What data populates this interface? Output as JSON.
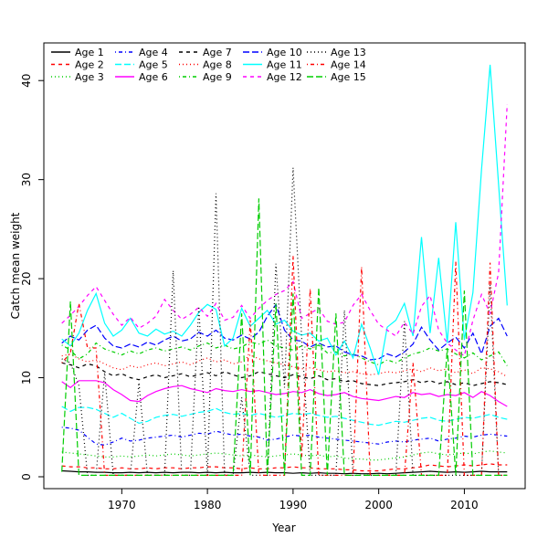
{
  "chart_data": {
    "type": "line",
    "title": "",
    "xlabel": "Year",
    "ylabel": "Catch mean weight",
    "x": [
      1963,
      1964,
      1965,
      1966,
      1967,
      1968,
      1969,
      1970,
      1971,
      1972,
      1973,
      1974,
      1975,
      1976,
      1977,
      1978,
      1979,
      1980,
      1981,
      1982,
      1983,
      1984,
      1985,
      1986,
      1987,
      1988,
      1989,
      1990,
      1991,
      1992,
      1993,
      1994,
      1995,
      1996,
      1997,
      1998,
      1999,
      2000,
      2001,
      2002,
      2003,
      2004,
      2005,
      2006,
      2007,
      2008,
      2009,
      2010,
      2011,
      2012,
      2013,
      2014,
      2015
    ],
    "xlim": [
      1960.9,
      2017.1
    ],
    "ylim": [
      -1.2,
      43.8
    ],
    "xticks": [
      1970,
      1980,
      1990,
      2000,
      2010
    ],
    "yticks": [
      0,
      10,
      20,
      30,
      40
    ],
    "grid": false,
    "legend_position": "top-left-inside",
    "legend_columns": 5,
    "series": [
      {
        "name": "Age 1",
        "color": "#000000",
        "linestyle": "solid",
        "values": [
          0.6,
          0.55,
          0.5,
          0.5,
          0.45,
          0.45,
          0.4,
          0.4,
          0.45,
          0.4,
          0.45,
          0.4,
          0.45,
          0.4,
          0.45,
          0.45,
          0.4,
          0.45,
          0.4,
          0.45,
          0.4,
          0.4,
          0.45,
          0.4,
          0.45,
          0.4,
          0.4,
          0.35,
          0.4,
          0.35,
          0.4,
          0.35,
          0.35,
          0.3,
          0.35,
          0.3,
          0.3,
          0.35,
          0.3,
          0.35,
          0.4,
          0.45,
          0.5,
          0.55,
          0.5,
          0.45,
          0.5,
          0.45,
          0.5,
          0.55,
          0.5,
          0.5,
          0.5
        ]
      },
      {
        "name": "Age 2",
        "color": "#FF0000",
        "linestyle": "dashed",
        "values": [
          1.1,
          1.0,
          1.0,
          0.9,
          0.9,
          0.8,
          0.8,
          0.9,
          0.8,
          0.8,
          0.9,
          0.8,
          0.9,
          0.9,
          0.8,
          0.9,
          0.9,
          1.0,
          1.0,
          0.9,
          0.9,
          0.8,
          0.9,
          0.8,
          0.8,
          0.9,
          0.9,
          1.0,
          0.9,
          0.9,
          0.8,
          0.8,
          0.8,
          0.7,
          0.7,
          0.6,
          0.6,
          0.6,
          0.7,
          0.8,
          0.8,
          0.9,
          1.0,
          1.2,
          1.1,
          1.0,
          1.1,
          1.2,
          1.1,
          1.2,
          1.3,
          1.2,
          1.2
        ]
      },
      {
        "name": "Age 3",
        "color": "#00CD00",
        "linestyle": "dotted",
        "values": [
          2.5,
          2.4,
          2.3,
          2.2,
          2.1,
          2.0,
          2.0,
          2.1,
          2.0,
          2.1,
          2.2,
          2.1,
          2.2,
          2.3,
          2.2,
          2.1,
          2.2,
          2.3,
          2.4,
          2.3,
          2.2,
          2.1,
          2.2,
          2.1,
          2.0,
          2.1,
          2.2,
          2.3,
          2.2,
          2.1,
          2.2,
          2.0,
          2.1,
          1.9,
          1.8,
          1.8,
          1.7,
          1.7,
          1.8,
          1.9,
          2.0,
          2.2,
          2.4,
          2.5,
          2.3,
          2.2,
          2.3,
          2.4,
          2.3,
          2.5,
          2.6,
          2.5,
          2.4
        ]
      },
      {
        "name": "Age 4",
        "color": "#0000FF",
        "linestyle": "dotdash",
        "values": [
          5.0,
          4.9,
          4.7,
          4.0,
          3.3,
          3.2,
          3.5,
          3.9,
          3.6,
          3.7,
          3.9,
          4.0,
          4.1,
          4.2,
          4.0,
          4.2,
          4.4,
          4.3,
          4.6,
          4.4,
          4.2,
          4.3,
          4.1,
          4.0,
          3.7,
          3.8,
          4.0,
          4.2,
          4.1,
          4.2,
          4.0,
          3.9,
          3.8,
          3.7,
          3.6,
          3.5,
          3.4,
          3.3,
          3.5,
          3.6,
          3.5,
          3.7,
          3.8,
          3.9,
          3.6,
          3.8,
          3.9,
          4.1,
          4.0,
          4.2,
          4.3,
          4.2,
          4.1
        ]
      },
      {
        "name": "Age 5",
        "color": "#00FFFF",
        "linestyle": "longdash",
        "values": [
          7.1,
          6.6,
          7.0,
          7.0,
          6.8,
          6.4,
          6.0,
          6.4,
          5.9,
          5.4,
          5.6,
          6.0,
          6.2,
          6.3,
          6.1,
          6.3,
          6.5,
          6.6,
          6.9,
          6.5,
          6.3,
          6.4,
          6.2,
          6.4,
          6.2,
          6.0,
          6.2,
          6.4,
          6.3,
          6.4,
          6.2,
          6.0,
          6.1,
          5.9,
          5.7,
          5.5,
          5.3,
          5.2,
          5.4,
          5.6,
          5.5,
          5.7,
          5.9,
          6.0,
          5.7,
          5.6,
          5.8,
          6.0,
          5.9,
          6.1,
          6.3,
          6.0,
          5.8
        ]
      },
      {
        "name": "Age 6",
        "color": "#FF00FF",
        "linestyle": "solid",
        "values": [
          9.6,
          9.0,
          9.7,
          9.7,
          9.7,
          9.5,
          8.8,
          8.3,
          7.7,
          7.6,
          8.2,
          8.6,
          8.9,
          9.1,
          9.2,
          8.9,
          8.7,
          8.5,
          8.9,
          8.7,
          8.6,
          8.8,
          8.6,
          8.7,
          8.5,
          8.3,
          8.4,
          8.6,
          8.5,
          8.8,
          8.4,
          8.2,
          8.3,
          8.5,
          8.1,
          7.9,
          7.8,
          7.7,
          7.9,
          8.1,
          8.0,
          8.5,
          8.3,
          8.4,
          8.1,
          8.3,
          8.2,
          8.5,
          8.0,
          8.6,
          8.2,
          7.6,
          7.1
        ]
      },
      {
        "name": "Age 7",
        "color": "#000000",
        "linestyle": "dashed",
        "values": [
          11.5,
          11.3,
          11.0,
          11.4,
          11.2,
          10.6,
          10.2,
          10.4,
          10.0,
          9.8,
          10.1,
          10.3,
          10.0,
          10.2,
          10.4,
          10.1,
          10.3,
          10.5,
          10.2,
          10.6,
          10.3,
          10.0,
          10.2,
          10.6,
          10.4,
          10.2,
          10.0,
          10.3,
          10.1,
          9.9,
          10.2,
          9.8,
          9.9,
          9.6,
          9.7,
          9.4,
          9.3,
          9.2,
          9.4,
          9.5,
          9.6,
          9.8,
          9.5,
          9.7,
          9.4,
          9.6,
          9.3,
          9.5,
          9.2,
          9.4,
          9.6,
          9.5,
          9.3
        ]
      },
      {
        "name": "Age 8",
        "color": "#FF0000",
        "linestyle": "dotted",
        "values": [
          12.2,
          12.4,
          11.9,
          11.6,
          11.8,
          11.4,
          11.0,
          10.8,
          11.2,
          11.0,
          11.3,
          11.5,
          11.2,
          11.4,
          11.6,
          11.3,
          11.7,
          12.0,
          11.6,
          11.8,
          11.4,
          11.6,
          12.3,
          11.9,
          11.7,
          11.5,
          11.3,
          11.1,
          10.9,
          11.0,
          10.8,
          10.6,
          10.7,
          10.5,
          10.6,
          10.4,
          10.3,
          10.4,
          10.6,
          10.5,
          10.7,
          10.9,
          10.6,
          11.0,
          10.7,
          10.9,
          10.5,
          10.8,
          10.4,
          11.0,
          10.9,
          10.6,
          10.1
        ]
      },
      {
        "name": "Age 9",
        "color": "#00CD00",
        "linestyle": "dotdash",
        "values": [
          13.3,
          12.8,
          11.9,
          12.4,
          13.5,
          12.9,
          12.6,
          12.3,
          12.7,
          12.4,
          12.8,
          13.0,
          12.7,
          12.9,
          13.1,
          12.8,
          13.2,
          13.5,
          13.0,
          13.3,
          12.9,
          13.1,
          13.6,
          13.4,
          13.8,
          13.2,
          13.0,
          12.8,
          13.2,
          12.9,
          13.3,
          12.5,
          12.6,
          12.2,
          12.4,
          12.0,
          11.6,
          11.3,
          11.8,
          11.5,
          12.0,
          12.4,
          12.6,
          13.0,
          12.7,
          12.9,
          12.4,
          12.0,
          12.5,
          11.8,
          12.2,
          12.6,
          11.2
        ]
      },
      {
        "name": "Age 10",
        "color": "#0000FF",
        "linestyle": "longdash",
        "values": [
          13.5,
          14.2,
          13.8,
          14.8,
          15.3,
          14.0,
          13.2,
          13.0,
          13.4,
          13.1,
          13.6,
          13.3,
          13.8,
          14.2,
          13.7,
          13.9,
          14.6,
          14.2,
          14.8,
          14.0,
          13.8,
          14.3,
          13.9,
          14.6,
          16.2,
          17.4,
          14.8,
          13.8,
          13.7,
          13.1,
          13.5,
          13.1,
          13.2,
          12.6,
          12.3,
          12.2,
          11.8,
          11.9,
          12.4,
          12.1,
          12.6,
          13.4,
          15.1,
          13.8,
          12.8,
          13.5,
          14.1,
          13.0,
          14.5,
          12.4,
          15.2,
          16.0,
          14.2
        ]
      },
      {
        "name": "Age 11",
        "color": "#00FFFF",
        "linestyle": "solid",
        "values": [
          13.9,
          13.2,
          14.5,
          16.8,
          18.5,
          15.5,
          14.2,
          14.8,
          16.0,
          14.5,
          14.2,
          14.9,
          14.4,
          14.7,
          14.2,
          15.3,
          16.6,
          17.4,
          16.9,
          13.2,
          14.0,
          17.0,
          15.2,
          16.0,
          16.8,
          15.4,
          15.8,
          14.7,
          14.3,
          14.5,
          13.7,
          14.0,
          12.3,
          13.7,
          12.0,
          15.4,
          13.0,
          10.3,
          15.1,
          15.8,
          17.5,
          14.2,
          24.2,
          14.5,
          22.1,
          13.5,
          25.7,
          13.8,
          18.6,
          31.0,
          41.6,
          29.5,
          17.3
        ]
      },
      {
        "name": "Age 12",
        "color": "#FF00FF",
        "linestyle": "dashed",
        "values": [
          15.5,
          16.3,
          17.2,
          18.3,
          19.2,
          17.8,
          16.4,
          15.3,
          16.1,
          15.0,
          15.5,
          16.2,
          17.9,
          16.8,
          15.9,
          16.4,
          17.1,
          16.2,
          17.5,
          15.8,
          16.1,
          17.3,
          16.0,
          17.0,
          17.8,
          18.4,
          18.8,
          19.7,
          16.0,
          16.5,
          17.0,
          15.7,
          15.4,
          15.6,
          17.3,
          18.4,
          16.8,
          15.4,
          14.8,
          14.2,
          15.6,
          14.4,
          17.2,
          18.3,
          14.8,
          13.5,
          12.8,
          12.2,
          15.8,
          18.4,
          16.5,
          20.6,
          37.6
        ]
      },
      {
        "name": "Age 13",
        "color": "#000000",
        "linestyle": "dotted",
        "values": [
          11.9,
          11.5,
          9.2,
          0.15,
          0.15,
          10.5,
          0.15,
          0.15,
          0.15,
          9.5,
          0.15,
          0.15,
          0.15,
          20.8,
          0.15,
          0.15,
          17.2,
          0.15,
          28.6,
          0.15,
          0.15,
          8.0,
          0.15,
          0.15,
          0.15,
          21.5,
          9.0,
          31.2,
          14.0,
          0.15,
          0.15,
          0.15,
          0.15,
          16.8,
          0.15,
          0.15,
          0.15,
          0.15,
          0.15,
          0.15,
          15.7,
          0.15,
          0.15,
          0.15,
          0.15,
          0.15,
          0.15,
          0.15,
          0.15,
          0.15,
          19.4,
          0.15,
          0.15
        ]
      },
      {
        "name": "Age 14",
        "color": "#FF0000",
        "linestyle": "dotdash",
        "values": [
          11.5,
          12.5,
          17.5,
          13.0,
          13.0,
          0.15,
          0.15,
          0.15,
          0.15,
          0.15,
          0.15,
          0.15,
          0.15,
          0.15,
          0.15,
          0.15,
          0.15,
          0.15,
          0.15,
          0.15,
          0.15,
          0.15,
          15.8,
          0.15,
          0.15,
          0.15,
          0.15,
          22.3,
          2.0,
          19.0,
          0.15,
          0.15,
          0.15,
          0.15,
          0.15,
          21.2,
          0.15,
          0.15,
          0.15,
          0.15,
          0.15,
          11.5,
          0.15,
          0.15,
          0.15,
          0.15,
          21.7,
          0.15,
          0.15,
          0.15,
          21.6,
          0.15,
          0.15
        ]
      },
      {
        "name": "Age 15",
        "color": "#00CD00",
        "linestyle": "longdash",
        "values": [
          0.5,
          17.7,
          0.15,
          0.15,
          0.15,
          0.15,
          0.15,
          0.15,
          0.15,
          0.15,
          0.15,
          0.15,
          0.15,
          0.15,
          0.15,
          0.15,
          0.15,
          0.15,
          0.15,
          0.15,
          0.15,
          16.5,
          0.15,
          28.1,
          0.15,
          17.5,
          0.15,
          18.5,
          0.15,
          0.15,
          19.1,
          0.15,
          16.5,
          0.15,
          0.15,
          0.15,
          0.15,
          0.15,
          0.15,
          0.15,
          0.15,
          0.15,
          0.15,
          0.15,
          0.15,
          13.0,
          0.15,
          18.8,
          0.15,
          0.15,
          0.15,
          0.15,
          0.15
        ]
      }
    ]
  },
  "colors": {
    "background": "#FFFFFF",
    "axis": "#000000",
    "text": "#000000"
  }
}
